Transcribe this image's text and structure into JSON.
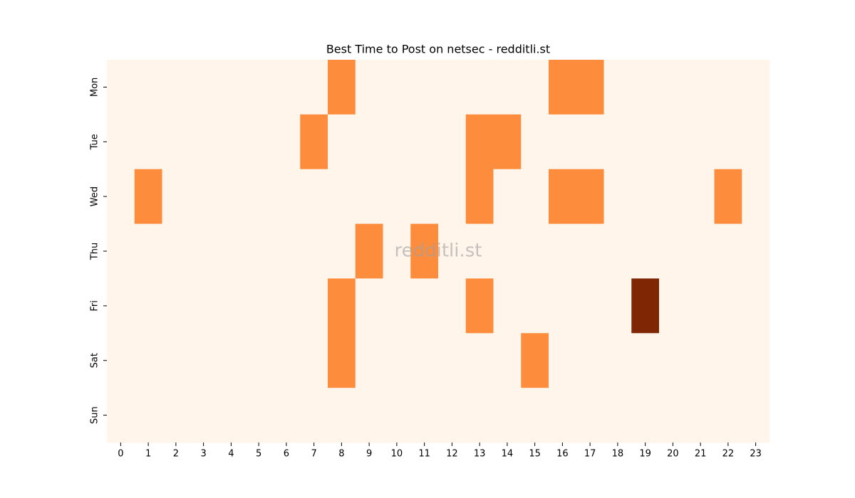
{
  "chart_data": {
    "type": "heatmap",
    "title": "Best Time to Post on netsec - redditli.st",
    "watermark": "redditli.st",
    "x": [
      0,
      1,
      2,
      3,
      4,
      5,
      6,
      7,
      8,
      9,
      10,
      11,
      12,
      13,
      14,
      15,
      16,
      17,
      18,
      19,
      20,
      21,
      22,
      23
    ],
    "y_categories": [
      "Mon",
      "Tue",
      "Wed",
      "Thu",
      "Fri",
      "Sat",
      "Sun"
    ],
    "values": [
      [
        0,
        0,
        0,
        0,
        0,
        0,
        0,
        0,
        1,
        0,
        0,
        0,
        0,
        0,
        0,
        0,
        1,
        1,
        0,
        0,
        0,
        0,
        0,
        0
      ],
      [
        0,
        0,
        0,
        0,
        0,
        0,
        0,
        1,
        0,
        0,
        0,
        0,
        0,
        1,
        1,
        0,
        0,
        0,
        0,
        0,
        0,
        0,
        0,
        0
      ],
      [
        0,
        1,
        0,
        0,
        0,
        0,
        0,
        0,
        0,
        0,
        0,
        0,
        0,
        1,
        0,
        0,
        1,
        1,
        0,
        0,
        0,
        0,
        1,
        0
      ],
      [
        0,
        0,
        0,
        0,
        0,
        0,
        0,
        0,
        0,
        1,
        0,
        1,
        0,
        0,
        0,
        0,
        0,
        0,
        0,
        0,
        0,
        0,
        0,
        0
      ],
      [
        0,
        0,
        0,
        0,
        0,
        0,
        0,
        0,
        1,
        0,
        0,
        0,
        0,
        1,
        0,
        0,
        0,
        0,
        0,
        2,
        0,
        0,
        0,
        0
      ],
      [
        0,
        0,
        0,
        0,
        0,
        0,
        0,
        0,
        1,
        0,
        0,
        0,
        0,
        0,
        0,
        1,
        0,
        0,
        0,
        0,
        0,
        0,
        0,
        0
      ],
      [
        0,
        0,
        0,
        0,
        0,
        0,
        0,
        0,
        0,
        0,
        0,
        0,
        0,
        0,
        0,
        0,
        0,
        0,
        0,
        0,
        0,
        0,
        0,
        0
      ]
    ],
    "colormap": [
      "#fff5eb",
      "#fd8d3c",
      "#7f2704"
    ],
    "vlim": [
      0,
      2
    ]
  }
}
